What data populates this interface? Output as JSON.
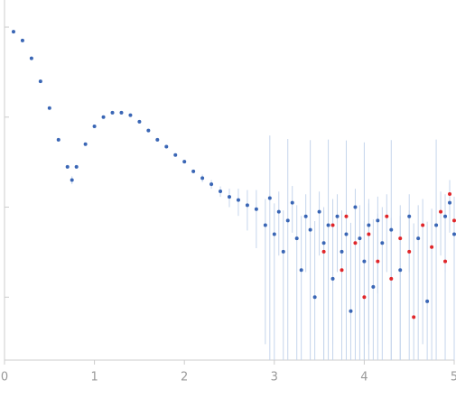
{
  "chart_data": {
    "type": "scatter",
    "log_y": true,
    "xlim": [
      0,
      5
    ],
    "xticks": [
      0,
      1,
      2,
      3,
      4,
      5
    ],
    "ylim": [
      0.0002,
      2
    ],
    "yticks": [
      1,
      0.1,
      0.01,
      0.001
    ],
    "error_color": "#c5d5ec",
    "series": [
      {
        "color": "#3a66b5",
        "x": [
          0.1,
          0.2,
          0.3,
          0.4,
          0.5,
          0.6,
          0.7,
          0.75,
          0.8,
          0.9,
          1.0,
          1.1,
          1.2,
          1.3,
          1.4,
          1.5,
          1.6,
          1.7,
          1.8,
          1.9,
          2.0,
          2.1,
          2.2,
          2.3,
          2.4,
          2.5,
          2.6,
          2.7,
          2.8,
          2.9,
          2.95,
          3.0,
          3.05,
          3.1,
          3.15,
          3.2,
          3.25,
          3.3,
          3.35,
          3.4,
          3.45,
          3.5,
          3.55,
          3.6,
          3.65,
          3.7,
          3.75,
          3.8,
          3.85,
          3.9,
          3.95,
          4.0,
          4.05,
          4.1,
          4.15,
          4.2,
          4.3,
          4.4,
          4.5,
          4.6,
          4.7,
          4.8,
          4.9,
          4.95,
          5.0
        ],
        "values": [
          0.89,
          0.71,
          0.45,
          0.25,
          0.126,
          0.056,
          0.028,
          0.02,
          0.028,
          0.05,
          0.079,
          0.1,
          0.112,
          0.112,
          0.105,
          0.089,
          0.071,
          0.056,
          0.047,
          0.038,
          0.032,
          0.025,
          0.021,
          0.018,
          0.015,
          0.013,
          0.012,
          0.0105,
          0.0095,
          0.0063,
          0.0126,
          0.005,
          0.0089,
          0.0032,
          0.0071,
          0.0112,
          0.0045,
          0.002,
          0.0079,
          0.0056,
          0.001,
          0.0089,
          0.004,
          0.0063,
          0.0016,
          0.0079,
          0.0032,
          0.005,
          0.0007,
          0.01,
          0.0045,
          0.0025,
          0.0063,
          0.0013,
          0.0071,
          0.004,
          0.0056,
          0.002,
          0.0079,
          0.0045,
          0.0009,
          0.0063,
          0.0079,
          0.0112,
          0.005
        ],
        "errors": [
          0.01,
          0.008,
          0.005,
          0.003,
          0.002,
          0.001,
          0.001,
          0.002,
          0.001,
          0.001,
          0.001,
          0.001,
          0.001,
          0.001,
          0.001,
          0.001,
          0.001,
          0.001,
          0.001,
          0.001,
          0.001,
          0.001,
          0.002,
          0.002,
          0.002,
          0.003,
          0.004,
          0.005,
          0.006,
          0.006,
          0.05,
          0.006,
          0.006,
          0.006,
          0.05,
          0.006,
          0.006,
          0.006,
          0.006,
          0.05,
          0.006,
          0.006,
          0.006,
          0.05,
          0.006,
          0.006,
          0.006,
          0.05,
          0.006,
          0.006,
          0.006,
          0.05,
          0.006,
          0.006,
          0.006,
          0.006,
          0.05,
          0.006,
          0.006,
          0.006,
          0.006,
          0.05,
          0.006,
          0.006,
          0.006
        ]
      },
      {
        "color": "#e0262a",
        "x": [
          3.55,
          3.65,
          3.75,
          3.8,
          3.9,
          4.0,
          4.05,
          4.15,
          4.25,
          4.3,
          4.4,
          4.5,
          4.55,
          4.65,
          4.75,
          4.85,
          4.9,
          4.95,
          5.0
        ],
        "values": [
          0.0032,
          0.0063,
          0.002,
          0.0079,
          0.004,
          0.001,
          0.005,
          0.0025,
          0.0079,
          0.0016,
          0.0045,
          0.0032,
          0.0006,
          0.0063,
          0.0036,
          0.0089,
          0.0025,
          0.014,
          0.0071
        ],
        "errors": [
          0.006,
          0.006,
          0.006,
          0.006,
          0.006,
          0.006,
          0.006,
          0.006,
          0.006,
          0.006,
          0.006,
          0.006,
          0.006,
          0.006,
          0.006,
          0.006,
          0.006,
          0.006,
          0.006
        ]
      }
    ]
  }
}
